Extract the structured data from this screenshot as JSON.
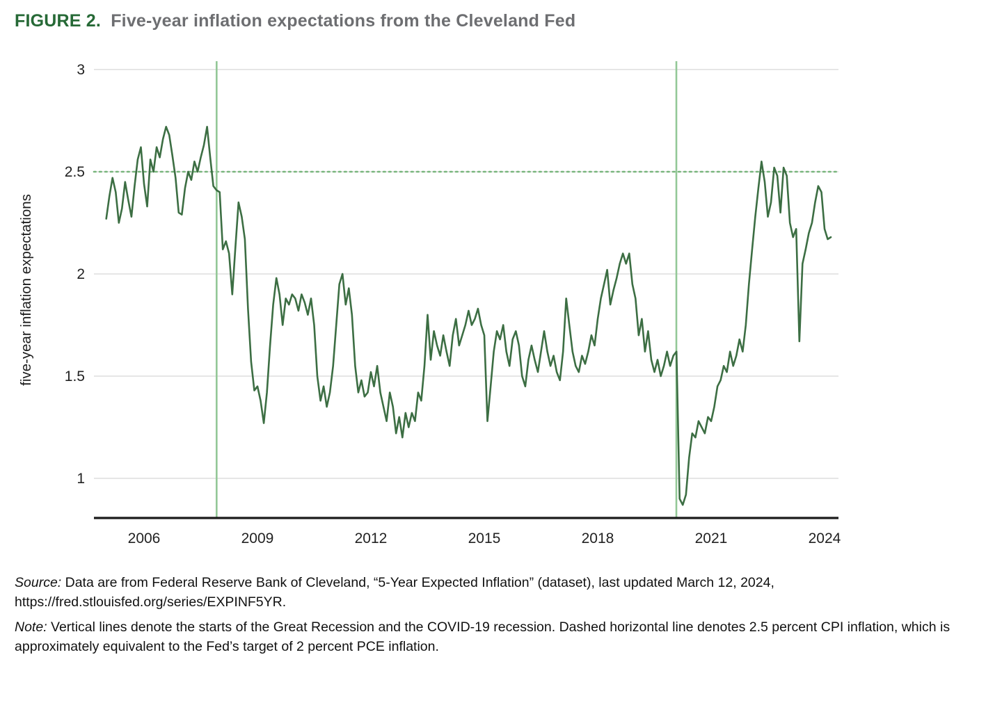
{
  "header": {
    "label": "FIGURE 2.",
    "title": "Five-year inflation expectations from the Cleveland Fed"
  },
  "colors": {
    "title_green": "#266936",
    "title_gray": "#6d6e71",
    "line_green": "#3c6e43",
    "reference_green": "#93c897",
    "dotted_green": "#79b67d",
    "gridline": "#d8d8d8",
    "axis": "#1a1a1a"
  },
  "chart_data": {
    "type": "line",
    "title": "Five-year inflation expectations from the Cleveland Fed",
    "xlabel": "",
    "ylabel": "five-year inflation expectations",
    "x_ticks": [
      2006,
      2009,
      2012,
      2015,
      2018,
      2021,
      2024
    ],
    "y_ticks": [
      1,
      1.5,
      2,
      2.5,
      3
    ],
    "xlim": [
      2004.7,
      2024.4
    ],
    "ylim": [
      0.82,
      3.05
    ],
    "grid": "horizontal",
    "legend": "none",
    "start": "2005-01",
    "frequency": "monthly",
    "reference_lines": {
      "vertical_x": [
        2007.92,
        2020.08
      ],
      "vertical_meaning": "starts of the Great Recession and the COVID-19 recession",
      "horizontal_dashed_y": 2.5,
      "horizontal_meaning": "2.5 percent CPI inflation"
    },
    "series": [
      {
        "name": "5-Year Expected Inflation (EXPINF5YR)",
        "values": [
          2.27,
          2.38,
          2.47,
          2.4,
          2.25,
          2.32,
          2.45,
          2.36,
          2.28,
          2.43,
          2.56,
          2.62,
          2.44,
          2.33,
          2.56,
          2.5,
          2.62,
          2.57,
          2.66,
          2.72,
          2.68,
          2.58,
          2.47,
          2.3,
          2.29,
          2.42,
          2.5,
          2.46,
          2.55,
          2.5,
          2.57,
          2.63,
          2.72,
          2.57,
          2.43,
          2.41,
          2.4,
          2.12,
          2.16,
          2.1,
          1.9,
          2.13,
          2.35,
          2.28,
          2.17,
          1.83,
          1.57,
          1.43,
          1.45,
          1.38,
          1.27,
          1.42,
          1.65,
          1.85,
          1.98,
          1.9,
          1.75,
          1.88,
          1.85,
          1.9,
          1.88,
          1.82,
          1.9,
          1.86,
          1.8,
          1.88,
          1.75,
          1.5,
          1.38,
          1.45,
          1.35,
          1.42,
          1.55,
          1.75,
          1.95,
          2.0,
          1.85,
          1.93,
          1.8,
          1.55,
          1.42,
          1.48,
          1.4,
          1.42,
          1.52,
          1.45,
          1.55,
          1.42,
          1.35,
          1.28,
          1.42,
          1.35,
          1.22,
          1.3,
          1.2,
          1.32,
          1.25,
          1.32,
          1.28,
          1.42,
          1.38,
          1.55,
          1.8,
          1.58,
          1.72,
          1.65,
          1.6,
          1.7,
          1.62,
          1.55,
          1.7,
          1.78,
          1.65,
          1.7,
          1.75,
          1.82,
          1.75,
          1.78,
          1.83,
          1.75,
          1.7,
          1.28,
          1.45,
          1.62,
          1.72,
          1.68,
          1.75,
          1.62,
          1.55,
          1.68,
          1.72,
          1.65,
          1.5,
          1.45,
          1.58,
          1.65,
          1.58,
          1.52,
          1.62,
          1.72,
          1.62,
          1.55,
          1.6,
          1.52,
          1.48,
          1.62,
          1.88,
          1.75,
          1.62,
          1.55,
          1.52,
          1.6,
          1.56,
          1.62,
          1.7,
          1.65,
          1.78,
          1.88,
          1.95,
          2.02,
          1.85,
          1.92,
          1.98,
          2.05,
          2.1,
          2.05,
          2.1,
          1.95,
          1.88,
          1.7,
          1.78,
          1.62,
          1.72,
          1.58,
          1.52,
          1.58,
          1.5,
          1.55,
          1.62,
          1.55,
          1.6,
          1.62,
          0.9,
          0.87,
          0.92,
          1.1,
          1.22,
          1.2,
          1.28,
          1.25,
          1.22,
          1.3,
          1.28,
          1.35,
          1.45,
          1.48,
          1.55,
          1.52,
          1.62,
          1.55,
          1.6,
          1.68,
          1.62,
          1.75,
          1.95,
          2.12,
          2.28,
          2.42,
          2.55,
          2.45,
          2.28,
          2.35,
          2.52,
          2.48,
          2.3,
          2.52,
          2.48,
          2.25,
          2.18,
          2.22,
          1.67,
          2.05,
          2.12,
          2.2,
          2.25,
          2.35,
          2.43,
          2.4,
          2.22,
          2.17,
          2.18
        ]
      }
    ]
  },
  "footer": {
    "source_label": "Source:",
    "source_text": "Data are from Federal Reserve Bank of Cleveland, “5-Year Expected Inflation” (dataset), last updated March 12, 2024,",
    "source_url": "https://fred.stlouisfed.org/series/EXPINF5YR.",
    "note_label": "Note:",
    "note_text": "Vertical lines denote the starts of the Great Recession and the COVID-19 recession. Dashed horizontal line denotes 2.5 percent CPI inflation, which is approximately equivalent to the Fed’s target of 2 percent PCE inflation."
  }
}
